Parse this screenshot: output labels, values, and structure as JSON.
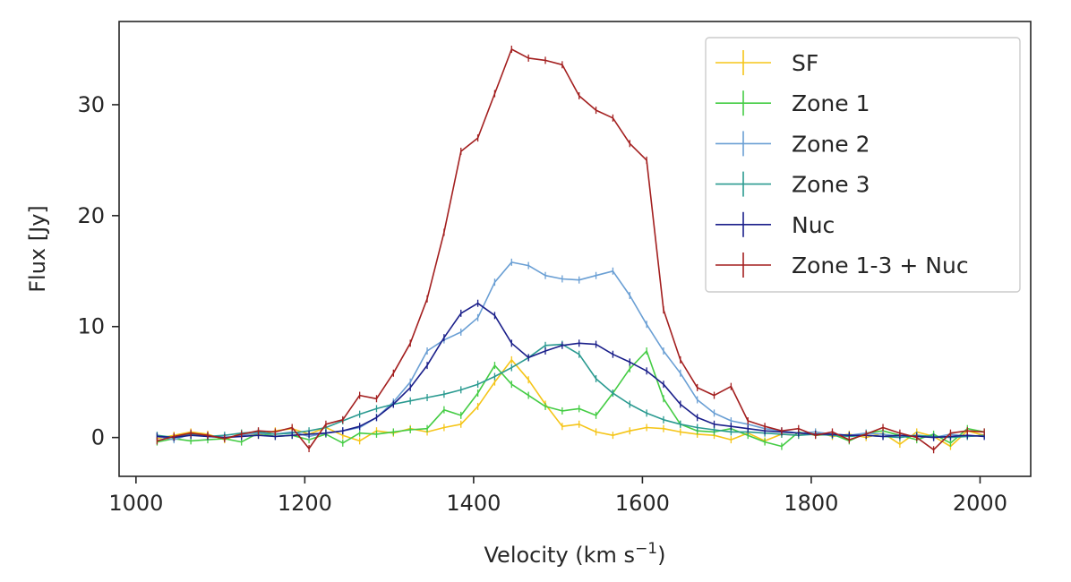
{
  "chart_data": {
    "type": "line",
    "title": "",
    "xlabel": "Velocity (km s",
    "xlabel_sup": "−1",
    "xlabel_close": ")",
    "ylabel": "Flux [Jy]",
    "xlim": [
      980,
      2060
    ],
    "ylim": [
      -3.5,
      37.5
    ],
    "xticks": [
      1000,
      1200,
      1400,
      1600,
      1800,
      2000
    ],
    "xtick_labels": [
      "1000",
      "1200",
      "1400",
      "1600",
      "1800",
      "2000"
    ],
    "yticks": [
      0,
      10,
      20,
      30
    ],
    "ytick_labels": [
      "0",
      "10",
      "20",
      "30"
    ],
    "grid": false,
    "legend_position": "top-right",
    "x": [
      1025,
      1045,
      1065,
      1085,
      1105,
      1125,
      1145,
      1165,
      1185,
      1205,
      1225,
      1245,
      1265,
      1285,
      1305,
      1325,
      1345,
      1365,
      1385,
      1405,
      1425,
      1445,
      1465,
      1485,
      1505,
      1525,
      1545,
      1565,
      1585,
      1605,
      1625,
      1645,
      1665,
      1685,
      1705,
      1725,
      1745,
      1765,
      1785,
      1805,
      1825,
      1845,
      1865,
      1885,
      1905,
      1925,
      1945,
      1965,
      1985,
      2005
    ],
    "series": [
      {
        "name": "SF",
        "color": "#f5c518",
        "values": [
          -0.1,
          0.2,
          0.5,
          0.3,
          -0.2,
          0.4,
          0.2,
          0.6,
          0.8,
          0.3,
          0.9,
          0.2,
          -0.3,
          0.6,
          0.4,
          0.8,
          0.5,
          0.9,
          1.2,
          2.8,
          5.0,
          7.0,
          5.2,
          3.0,
          1.0,
          1.2,
          0.5,
          0.2,
          0.6,
          0.9,
          0.8,
          0.5,
          0.3,
          0.2,
          -0.2,
          0.4,
          -0.3,
          0.3,
          0.2,
          0.5,
          0.1,
          0.3,
          0.0,
          0.4,
          -0.6,
          0.5,
          0.1,
          -0.8,
          0.6,
          0.2
        ]
      },
      {
        "name": "Zone 1",
        "color": "#44cc44",
        "values": [
          -0.4,
          -0.1,
          -0.3,
          -0.2,
          -0.1,
          -0.4,
          0.4,
          0.1,
          0.2,
          -0.2,
          0.3,
          -0.5,
          0.4,
          0.3,
          0.5,
          0.7,
          0.8,
          2.5,
          2.0,
          4.0,
          6.5,
          4.8,
          3.8,
          2.8,
          2.4,
          2.6,
          2.0,
          4.0,
          6.2,
          7.8,
          3.5,
          1.2,
          0.6,
          0.5,
          0.8,
          0.2,
          -0.4,
          -0.8,
          0.5,
          0.2,
          0.3,
          -0.3,
          0.4,
          0.6,
          0.2,
          -0.2,
          0.3,
          -0.5,
          0.8,
          0.5
        ]
      },
      {
        "name": "Zone 2",
        "color": "#6a9fd4",
        "values": [
          0.1,
          -0.2,
          0.3,
          0.1,
          0.0,
          0.2,
          0.4,
          0.3,
          0.5,
          0.1,
          0.4,
          0.6,
          0.9,
          1.8,
          3.2,
          5.0,
          7.8,
          8.8,
          9.5,
          10.8,
          14.0,
          15.8,
          15.5,
          14.6,
          14.3,
          14.2,
          14.6,
          15.0,
          12.8,
          10.2,
          7.8,
          5.8,
          3.4,
          2.2,
          1.5,
          1.2,
          0.8,
          0.6,
          0.4,
          0.5,
          0.3,
          0.2,
          0.4,
          0.3,
          0.1,
          0.2,
          0.0,
          0.3,
          0.1,
          0.2
        ]
      },
      {
        "name": "Zone 3",
        "color": "#2a9a90",
        "values": [
          0.2,
          0.0,
          0.3,
          0.1,
          0.2,
          0.4,
          0.5,
          0.3,
          0.4,
          0.6,
          0.9,
          1.5,
          2.1,
          2.6,
          3.0,
          3.3,
          3.6,
          3.9,
          4.3,
          4.8,
          5.5,
          6.3,
          7.2,
          8.3,
          8.4,
          7.5,
          5.3,
          4.0,
          3.0,
          2.2,
          1.6,
          1.2,
          0.9,
          0.7,
          0.5,
          0.5,
          0.4,
          0.3,
          0.2,
          0.3,
          0.2,
          0.1,
          0.2,
          0.1,
          0.0,
          0.2,
          0.1,
          0.0,
          0.1,
          0.2
        ]
      },
      {
        "name": "Nuc",
        "color": "#1a1f8a",
        "values": [
          0.1,
          0.0,
          0.2,
          0.1,
          0.0,
          0.1,
          0.2,
          0.1,
          0.2,
          0.3,
          0.4,
          0.6,
          1.0,
          1.8,
          3.0,
          4.5,
          6.5,
          9.0,
          11.2,
          12.1,
          11.0,
          8.5,
          7.2,
          7.8,
          8.3,
          8.5,
          8.4,
          7.5,
          6.8,
          6.0,
          4.8,
          3.0,
          1.8,
          1.2,
          1.0,
          0.8,
          0.6,
          0.5,
          0.4,
          0.3,
          0.3,
          0.2,
          0.2,
          0.1,
          0.2,
          0.1,
          0.0,
          0.1,
          0.2,
          0.1
        ]
      },
      {
        "name": "Zone 1-3 + Nuc",
        "color": "#a31f1f",
        "values": [
          -0.3,
          0.1,
          0.4,
          0.2,
          -0.1,
          0.3,
          0.6,
          0.5,
          0.9,
          -1.0,
          1.2,
          1.6,
          3.8,
          3.5,
          5.8,
          8.5,
          12.5,
          18.5,
          25.8,
          27.0,
          31.0,
          35.0,
          34.2,
          34.0,
          33.6,
          30.8,
          29.5,
          28.8,
          26.5,
          25.0,
          11.5,
          7.0,
          4.5,
          3.8,
          4.6,
          1.5,
          1.0,
          0.6,
          0.8,
          0.2,
          0.5,
          -0.2,
          0.3,
          0.9,
          0.4,
          0.0,
          -1.1,
          0.4,
          0.6,
          0.5
        ]
      }
    ]
  }
}
